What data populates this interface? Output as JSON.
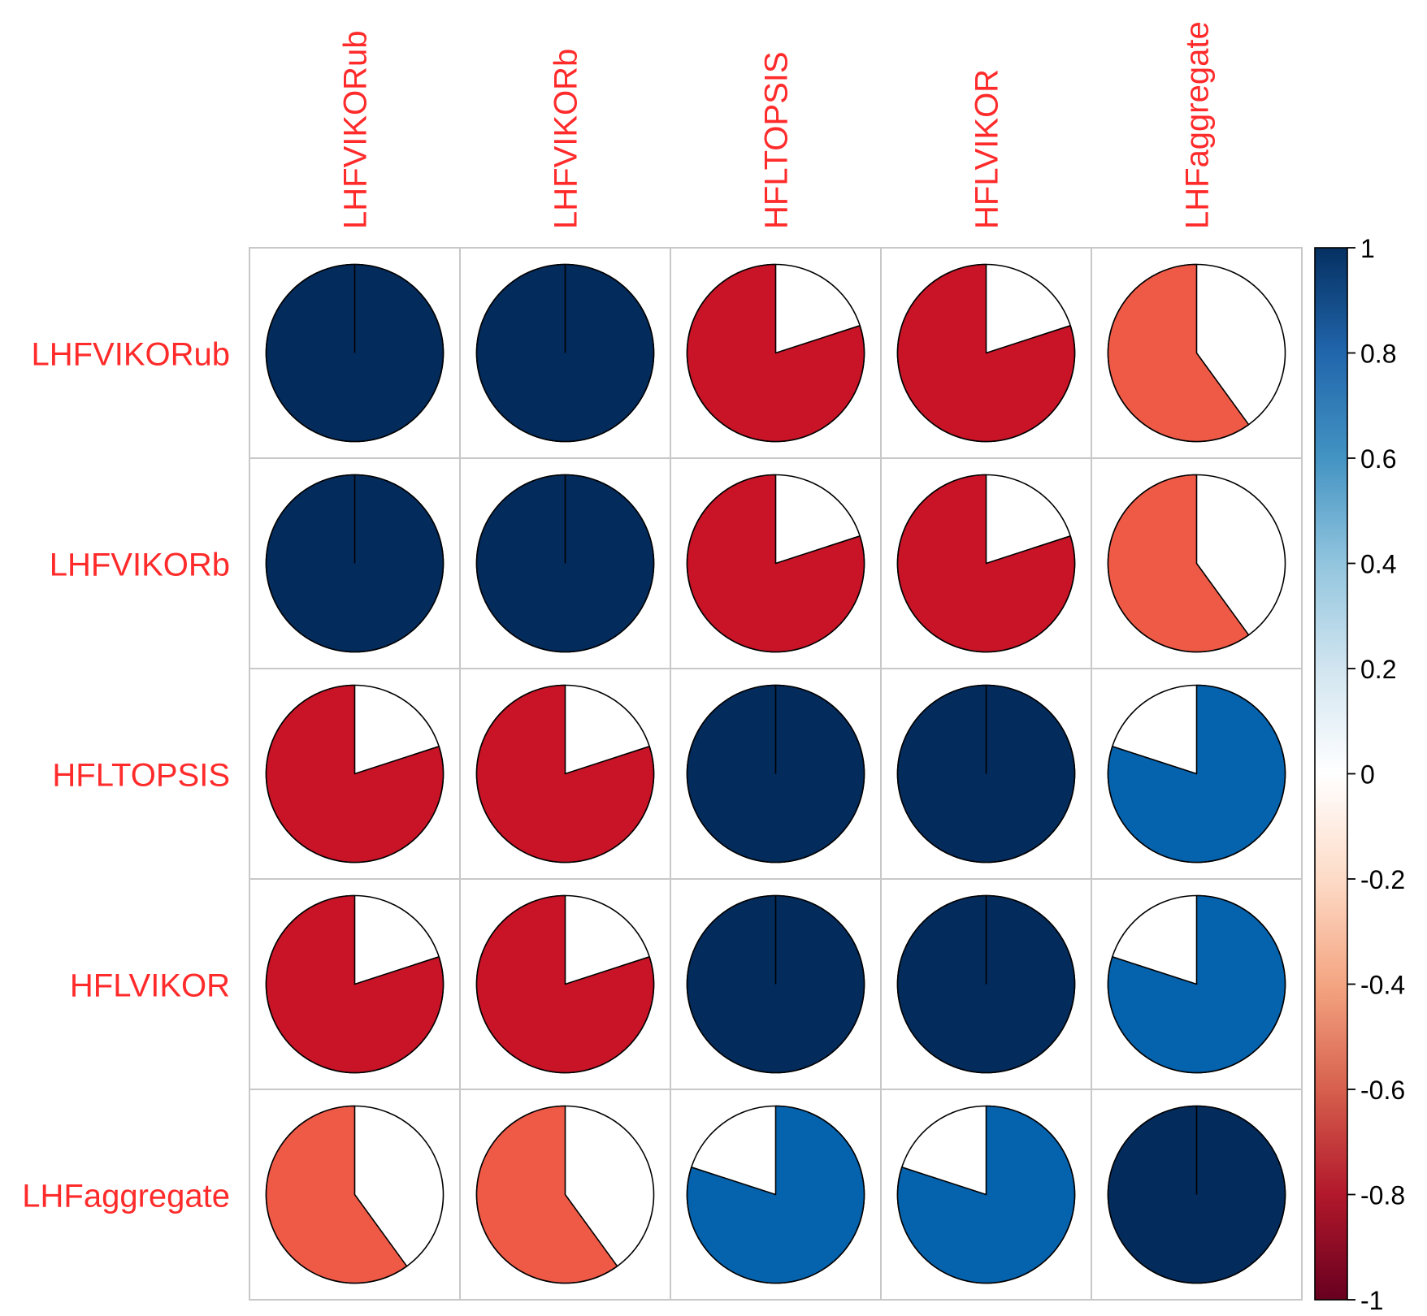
{
  "chart_data": {
    "type": "corrplot-pie",
    "variables": [
      "LHFVIKORub",
      "LHFVIKORb",
      "HFLTOPSIS",
      "HFLVIKOR",
      "LHFaggregate"
    ],
    "matrix": [
      [
        1.0,
        1.0,
        -0.8,
        -0.8,
        -0.6
      ],
      [
        1.0,
        1.0,
        -0.8,
        -0.8,
        -0.6
      ],
      [
        -0.8,
        -0.8,
        1.0,
        1.0,
        0.8
      ],
      [
        -0.8,
        -0.8,
        1.0,
        1.0,
        0.8
      ],
      [
        -0.6,
        -0.6,
        0.8,
        0.8,
        1.0
      ]
    ],
    "colorbar": {
      "range": [
        -1,
        1
      ],
      "tick_values": [
        1,
        0.8,
        0.6,
        0.4,
        0.2,
        0,
        -0.2,
        -0.4,
        -0.6,
        -0.8,
        -1
      ],
      "tick_labels": [
        "1",
        "0.8",
        "0.6",
        "0.4",
        "0.2",
        "0",
        "-0.2",
        "-0.4",
        "-0.6",
        "-0.8",
        "-1"
      ],
      "color_stops": [
        {
          "value": -1.0,
          "color": "#67001F"
        },
        {
          "value": -0.8,
          "color": "#B2182B"
        },
        {
          "value": -0.6,
          "color": "#D6604D"
        },
        {
          "value": -0.4,
          "color": "#F4A582"
        },
        {
          "value": -0.2,
          "color": "#FDDBC7"
        },
        {
          "value": 0.0,
          "color": "#FFFFFF"
        },
        {
          "value": 0.2,
          "color": "#D1E5F0"
        },
        {
          "value": 0.4,
          "color": "#92C5DE"
        },
        {
          "value": 0.6,
          "color": "#4393C3"
        },
        {
          "value": 0.8,
          "color": "#2166AC"
        },
        {
          "value": 1.0,
          "color": "#053061"
        }
      ]
    },
    "pie_colors": {
      "1": "#032B5C",
      "0.8": "#0562AD",
      "-0.6": "#EF5A47",
      "-0.8": "#C81426"
    },
    "label_color": "#FF2B2B",
    "grid_color": "#C8C8C8"
  }
}
